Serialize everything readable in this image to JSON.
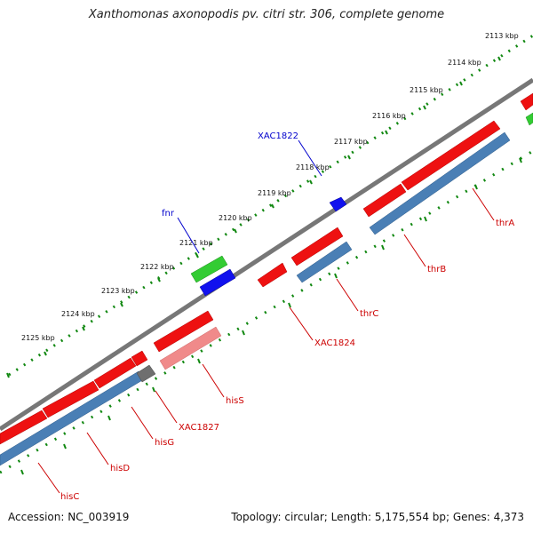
{
  "title": "Xanthomonas axonopodis pv. citri str. 306, complete genome",
  "footer": {
    "accession": "Accession: NC_003919",
    "topology": "Topology: circular; Length: 5,175,554 bp; Genes: 4,373"
  },
  "colors": {
    "forward_gene": "#ee1111",
    "reverse_gene": "#4a7fb5",
    "rna_green": "#33cc33",
    "blue_feature": "#1111ee",
    "pink_feature": "#f08a8a",
    "gray_feature": "#6f6f6f",
    "backbone": "#777777",
    "tick_green": "#118811",
    "red_label": "#cc0000",
    "blue_label": "#0000cc"
  },
  "kbp_ticks": [
    "2113 kbp",
    "2114 kbp",
    "2115 kbp",
    "2116 kbp",
    "2117 kbp",
    "2118 kbp",
    "2119 kbp",
    "2120 kbp",
    "2121 kbp",
    "2122 kbp",
    "2123 kbp",
    "2124 kbp",
    "2125 kbp"
  ],
  "gene_labels": [
    {
      "name": "XAC1822",
      "color": "blue"
    },
    {
      "name": "fnr",
      "color": "blue"
    },
    {
      "name": "thrA",
      "color": "red"
    },
    {
      "name": "thrB",
      "color": "red"
    },
    {
      "name": "thrC",
      "color": "red"
    },
    {
      "name": "XAC1824",
      "color": "red"
    },
    {
      "name": "hisS",
      "color": "red"
    },
    {
      "name": "XAC1827",
      "color": "red"
    },
    {
      "name": "hisG",
      "color": "red"
    },
    {
      "name": "hisD",
      "color": "red"
    },
    {
      "name": "hisC",
      "color": "red"
    }
  ]
}
